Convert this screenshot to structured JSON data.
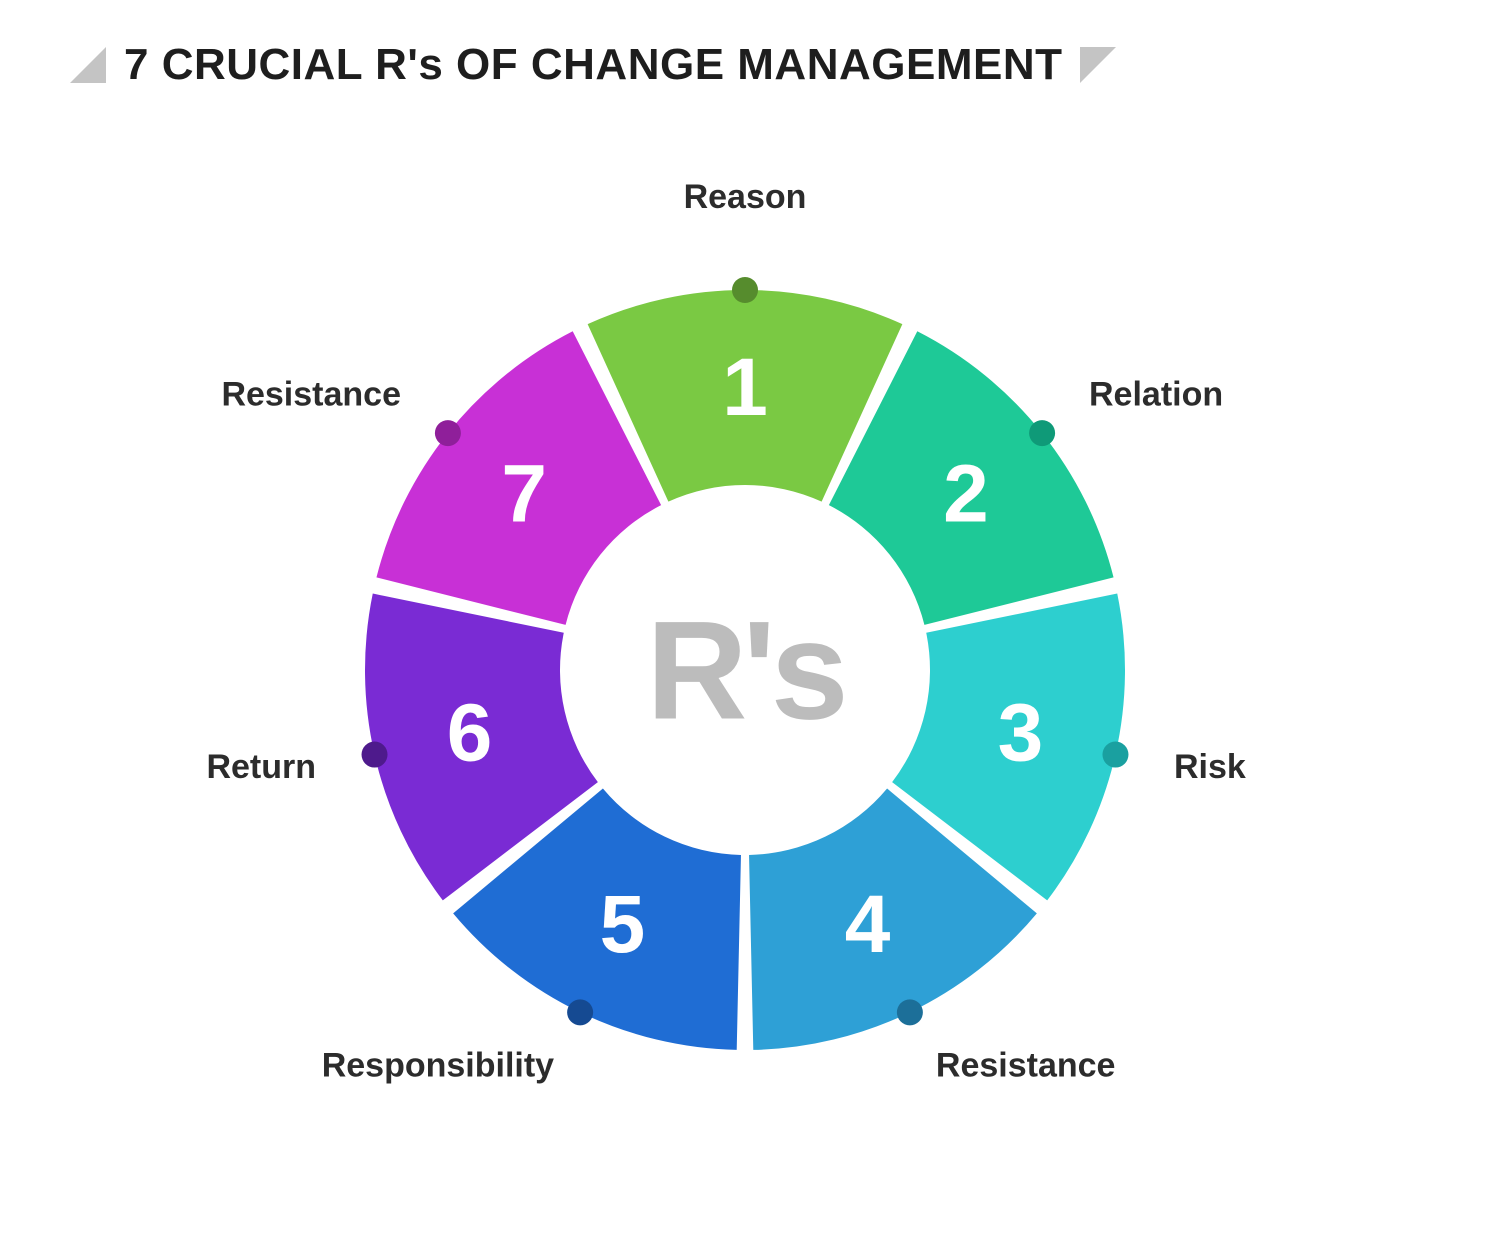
{
  "title": "7 CRUCIAL R's OF CHANGE MANAGEMENT",
  "title_color": "#1e1e1e",
  "title_fontsize": 44,
  "triangle_color": "#c4c4c4",
  "center_text": "R's",
  "center_text_color": "#bcbcbc",
  "center_text_fontsize": 140,
  "donut": {
    "outer_radius": 380,
    "inner_radius": 185,
    "gap_deg": 2.5,
    "number_fontsize": 82,
    "number_color": "#ffffff",
    "label_fontsize": 34,
    "label_color": "#2c2c2c",
    "dot_radius": 13,
    "label_offset": 60,
    "segments": [
      {
        "num": "1",
        "label": "Reason",
        "fill": "#7ac943",
        "dot": "#568c2d",
        "label_anchor": "middle"
      },
      {
        "num": "2",
        "label": "Relation",
        "fill": "#1ec997",
        "dot": "#0f9a78",
        "label_anchor": "start"
      },
      {
        "num": "3",
        "label": "Risk",
        "fill": "#2dcfcf",
        "dot": "#1aa0a0",
        "label_anchor": "start"
      },
      {
        "num": "4",
        "label": "Resistance",
        "fill": "#2ea0d6",
        "dot": "#1c6f99",
        "label_anchor": "start"
      },
      {
        "num": "5",
        "label": "Responsibility",
        "fill": "#1f6dd4",
        "dot": "#154a92",
        "label_anchor": "end"
      },
      {
        "num": "6",
        "label": "Return",
        "fill": "#7a2bd4",
        "dot": "#4e1a8c",
        "label_anchor": "end"
      },
      {
        "num": "7",
        "label": "Resistance",
        "fill": "#c830d6",
        "dot": "#8f1f9a",
        "label_anchor": "end"
      }
    ]
  }
}
